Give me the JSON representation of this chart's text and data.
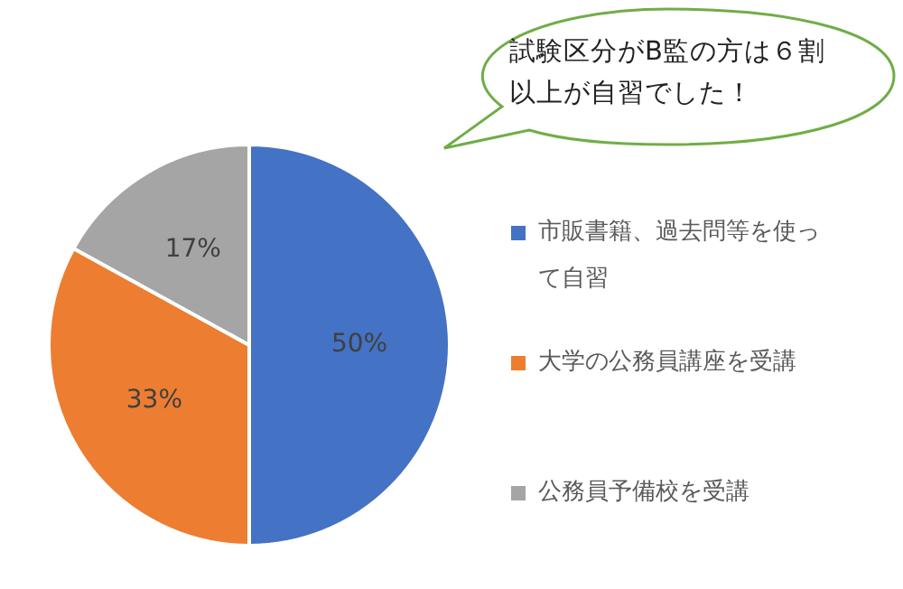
{
  "chart_data": {
    "type": "pie",
    "categories": [
      "市販書籍、過去問等を使って自習",
      "大学の公務員講座を受講",
      "公務員予備校を受講"
    ],
    "values": [
      50,
      33,
      17
    ],
    "colors": [
      "#4472c4",
      "#ed7d31",
      "#a5a5a5"
    ],
    "value_labels": [
      "50%",
      "33%",
      "17%"
    ],
    "legend": "right",
    "annotations": [
      "試験区分がB監の方は６割以上が自習でした！"
    ]
  }
}
